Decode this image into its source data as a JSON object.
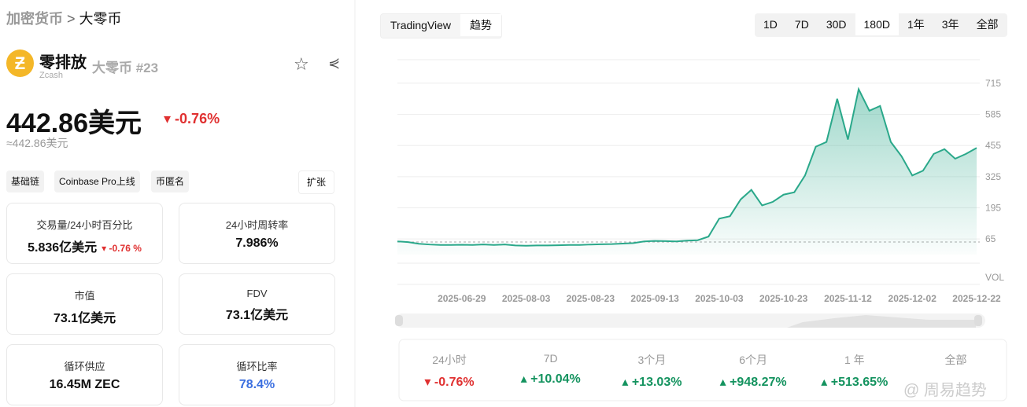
{
  "breadcrumb": {
    "root": "加密货币",
    "separator": ">",
    "current": "大零币"
  },
  "coin": {
    "name": "零排放",
    "symbol": "Zcash",
    "alias": "大零币 #23"
  },
  "price": {
    "value": "442.86美元",
    "change": "-0.76%",
    "approx": "≈442.86美元"
  },
  "tags": [
    "基础链",
    "Coinbase Pro上线",
    "币匿名"
  ],
  "expand": "扩张",
  "stats": [
    {
      "label": "交易量/24小时百分比",
      "value": "5.836亿美元",
      "change": "-0.76 %"
    },
    {
      "label": "24小时周转率",
      "value": "7.986%"
    },
    {
      "label": "市值",
      "value": "73.1亿美元"
    },
    {
      "label": "FDV",
      "value": "73.1亿美元"
    },
    {
      "label": "循环供应",
      "value": "16.45M ZEC"
    },
    {
      "label": "循环比率",
      "value": "78.4%"
    }
  ],
  "tabs": [
    "TradingView",
    "趋势"
  ],
  "ranges": [
    "1D",
    "7D",
    "30D",
    "180D",
    "1年",
    "3年",
    "全部"
  ],
  "chart_data": {
    "type": "line",
    "categories": [
      null,
      null,
      null,
      null,
      null,
      null,
      "2025-06-29",
      null,
      null,
      null,
      null,
      null,
      "2025-08-03",
      null,
      null,
      null,
      null,
      null,
      "2025-08-23",
      null,
      null,
      null,
      null,
      null,
      "2025-09-13",
      null,
      null,
      null,
      null,
      null,
      "2025-10-03",
      null,
      null,
      null,
      null,
      null,
      "2025-10-23",
      null,
      null,
      null,
      null,
      null,
      "2025-11-12",
      null,
      null,
      null,
      null,
      null,
      "2025-12-02",
      null,
      null,
      null,
      null,
      null,
      "2025-12-22"
    ],
    "series": [
      {
        "color": "#2aa88a",
        "values": [
          55,
          52,
          45,
          42,
          40,
          40,
          41,
          40,
          42,
          40,
          42,
          38,
          37,
          38,
          38,
          39,
          40,
          40,
          42,
          43,
          44,
          46,
          48,
          55,
          57,
          56,
          55,
          58,
          60,
          75,
          150,
          160,
          230,
          270,
          205,
          220,
          250,
          260,
          330,
          450,
          470,
          650,
          480,
          690,
          600,
          620,
          470,
          410,
          330,
          350,
          420,
          440,
          400,
          420,
          445
        ]
      }
    ],
    "ylim": [
      0,
      813
    ],
    "yticks": [
      65,
      195,
      325,
      455,
      585,
      715
    ],
    "grid": true,
    "volume_label": "VOL"
  },
  "performance": [
    {
      "period": "24小时",
      "change": "-0.76%"
    },
    {
      "period": "7D",
      "change": "+10.04%"
    },
    {
      "period": "3个月",
      "change": "+13.03%"
    },
    {
      "period": "6个月",
      "change": "+948.27%"
    },
    {
      "period": "1 年",
      "change": "+513.65%"
    },
    {
      "period": "全部",
      "change": null
    }
  ],
  "watermark": "@ 周易趋势"
}
